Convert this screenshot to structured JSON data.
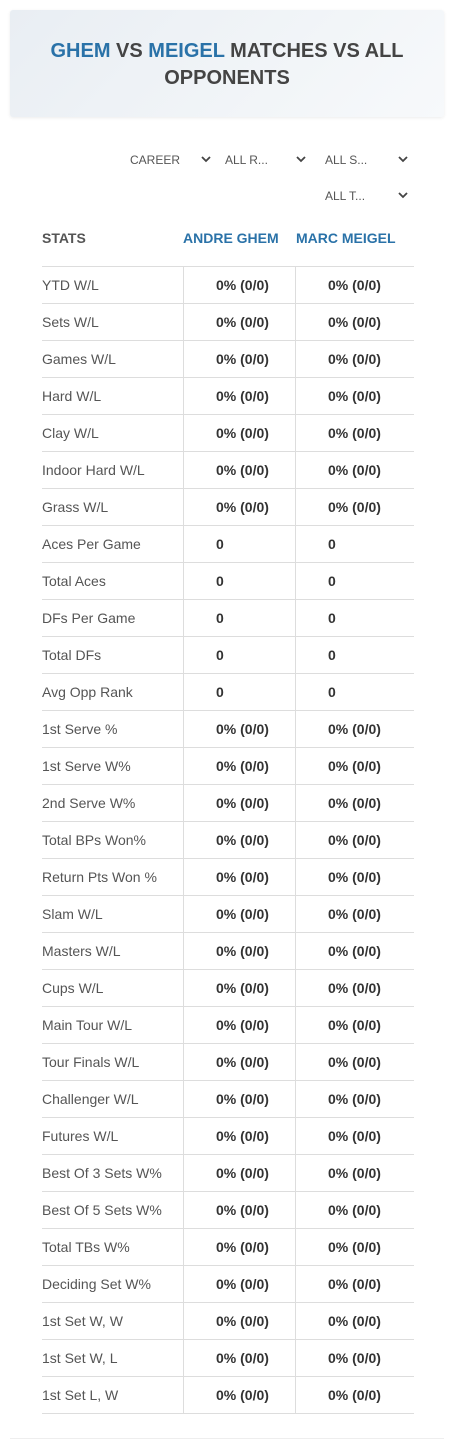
{
  "header": {
    "title": {
      "player1": "GHEM",
      "vs": "VS",
      "player2": "MEIGEL",
      "rest": "MATCHES VS ALL OPPONENTS"
    }
  },
  "filters": [
    "CAREER",
    "ALL R...",
    "ALL S...",
    "ALL T..."
  ],
  "table": {
    "headers": [
      "STATS",
      "ANDRE GHEM",
      "MARC MEIGEL"
    ],
    "rows": [
      [
        "YTD W/L",
        "0% (0/0)",
        "0% (0/0)"
      ],
      [
        "Sets W/L",
        "0% (0/0)",
        "0% (0/0)"
      ],
      [
        "Games W/L",
        "0% (0/0)",
        "0% (0/0)"
      ],
      [
        "Hard W/L",
        "0% (0/0)",
        "0% (0/0)"
      ],
      [
        "Clay W/L",
        "0% (0/0)",
        "0% (0/0)"
      ],
      [
        "Indoor Hard W/L",
        "0% (0/0)",
        "0% (0/0)"
      ],
      [
        "Grass W/L",
        "0% (0/0)",
        "0% (0/0)"
      ],
      [
        "Aces Per Game",
        "0",
        "0"
      ],
      [
        "Total Aces",
        "0",
        "0"
      ],
      [
        "DFs Per Game",
        "0",
        "0"
      ],
      [
        "Total DFs",
        "0",
        "0"
      ],
      [
        "Avg Opp Rank",
        "0",
        "0"
      ],
      [
        "1st Serve %",
        "0% (0/0)",
        "0% (0/0)"
      ],
      [
        "1st Serve W%",
        "0% (0/0)",
        "0% (0/0)"
      ],
      [
        "2nd Serve W%",
        "0% (0/0)",
        "0% (0/0)"
      ],
      [
        "Total BPs Won%",
        "0% (0/0)",
        "0% (0/0)"
      ],
      [
        "Return Pts Won %",
        "0% (0/0)",
        "0% (0/0)"
      ],
      [
        "Slam W/L",
        "0% (0/0)",
        "0% (0/0)"
      ],
      [
        "Masters W/L",
        "0% (0/0)",
        "0% (0/0)"
      ],
      [
        "Cups W/L",
        "0% (0/0)",
        "0% (0/0)"
      ],
      [
        "Main Tour W/L",
        "0% (0/0)",
        "0% (0/0)"
      ],
      [
        "Tour Finals W/L",
        "0% (0/0)",
        "0% (0/0)"
      ],
      [
        "Challenger W/L",
        "0% (0/0)",
        "0% (0/0)"
      ],
      [
        "Futures W/L",
        "0% (0/0)",
        "0% (0/0)"
      ],
      [
        "Best Of 3 Sets W%",
        "0% (0/0)",
        "0% (0/0)"
      ],
      [
        "Best Of 5 Sets W%",
        "0% (0/0)",
        "0% (0/0)"
      ],
      [
        "Total TBs W%",
        "0% (0/0)",
        "0% (0/0)"
      ],
      [
        "Deciding Set W%",
        "0% (0/0)",
        "0% (0/0)"
      ],
      [
        "1st Set W, W",
        "0% (0/0)",
        "0% (0/0)"
      ],
      [
        "1st Set W, L",
        "0% (0/0)",
        "0% (0/0)"
      ],
      [
        "1st Set L, W",
        "0% (0/0)",
        "0% (0/0)"
      ]
    ]
  }
}
